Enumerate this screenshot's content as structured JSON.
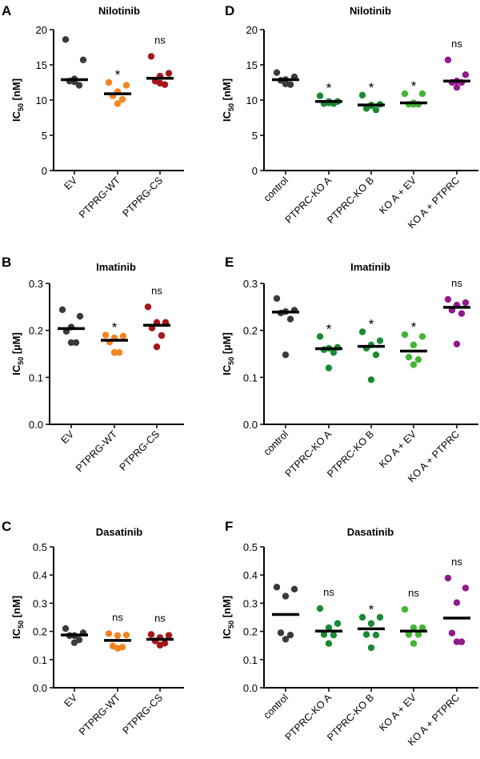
{
  "colors": {
    "EV": "#3a3a3a",
    "control": "#3a3a3a",
    "PTPRG-WT": "#f5841f",
    "PTPRG-CS": "#a4161a",
    "PTPRC-KO A": "#1a8a34",
    "PTPRC-KO B": "#1a8a34",
    "KO A + EV": "#42b533",
    "KO A + PTPRC": "#8e1a8c",
    "median": "#000000",
    "axis": "#000000"
  },
  "chart_data": [
    {
      "id": "A",
      "type": "scatter",
      "panel_letter": "A",
      "title": "Nilotinib",
      "ylabel_main": "IC",
      "ylabel_sub": "50",
      "ylabel_unit": " [nM]",
      "ylim": [
        0,
        20
      ],
      "yticks": [
        0,
        5,
        10,
        15,
        20
      ],
      "ytick_labels": [
        "0",
        "5",
        "10",
        "15",
        "20"
      ],
      "categories": [
        "EV",
        "PTPRG-WT",
        "PTPRG-CS"
      ],
      "series": [
        {
          "name": "EV",
          "values": [
            18.6,
            15.7,
            13.0,
            12.7,
            12.1,
            12.6
          ],
          "median": 12.9,
          "sig": ""
        },
        {
          "name": "PTPRG-WT",
          "values": [
            12.5,
            12.1,
            11.2,
            10.6,
            10.1,
            9.5
          ],
          "median": 10.9,
          "sig": "*"
        },
        {
          "name": "PTPRG-CS",
          "values": [
            16.2,
            13.8,
            13.4,
            12.7,
            12.2,
            12.4
          ],
          "median": 13.1,
          "sig": "ns"
        }
      ]
    },
    {
      "id": "D",
      "type": "scatter",
      "panel_letter": "D",
      "title": "Nilotinib",
      "ylabel_main": "IC",
      "ylabel_sub": "50",
      "ylabel_unit": " [nM]",
      "ylim": [
        0,
        20
      ],
      "yticks": [
        0,
        5,
        10,
        15,
        20
      ],
      "ytick_labels": [
        "0",
        "5",
        "10",
        "15",
        "20"
      ],
      "categories": [
        "control",
        "PTPRC-KO A",
        "PTPRC-KO B",
        "KO A + EV",
        "KO A + PTPRC"
      ],
      "series": [
        {
          "name": "control",
          "values": [
            13.9,
            13.3,
            12.9,
            12.8,
            12.2,
            12.3
          ],
          "median": 12.9,
          "sig": ""
        },
        {
          "name": "PTPRC-KO A",
          "values": [
            10.6,
            9.8,
            9.6,
            9.5,
            9.5,
            9.8
          ],
          "median": 9.8,
          "sig": "*"
        },
        {
          "name": "PTPRC-KO B",
          "values": [
            10.7,
            9.4,
            9.2,
            8.8,
            8.6,
            9.3
          ],
          "median": 9.3,
          "sig": "*"
        },
        {
          "name": "KO A + EV",
          "values": [
            10.9,
            10.9,
            9.6,
            9.4,
            9.4,
            9.4
          ],
          "median": 9.6,
          "sig": "*"
        },
        {
          "name": "KO A + PTPRC",
          "values": [
            15.7,
            13.6,
            12.7,
            12.5,
            12.5,
            11.8
          ],
          "median": 12.7,
          "sig": "ns"
        }
      ]
    },
    {
      "id": "B",
      "type": "scatter",
      "panel_letter": "B",
      "title": "Imatinib",
      "ylabel_main": "IC",
      "ylabel_sub": "50",
      "ylabel_unit": " [µM]",
      "ylim": [
        0,
        0.3
      ],
      "yticks": [
        0,
        0.1,
        0.2,
        0.3
      ],
      "ytick_labels": [
        "0.0",
        "0.1",
        "0.2",
        "0.3"
      ],
      "categories": [
        "EV",
        "PTPRG-WT",
        "PTPRG-CS"
      ],
      "series": [
        {
          "name": "EV",
          "values": [
            0.244,
            0.23,
            0.207,
            0.198,
            0.174,
            0.174
          ],
          "median": 0.204,
          "sig": ""
        },
        {
          "name": "PTPRG-WT",
          "values": [
            0.19,
            0.188,
            0.184,
            0.175,
            0.153,
            0.153
          ],
          "median": 0.179,
          "sig": "*"
        },
        {
          "name": "PTPRG-CS",
          "values": [
            0.25,
            0.217,
            0.217,
            0.205,
            0.189,
            0.165
          ],
          "median": 0.211,
          "sig": "ns"
        }
      ]
    },
    {
      "id": "E",
      "type": "scatter",
      "panel_letter": "E",
      "title": "Imatinib",
      "ylabel_main": "IC",
      "ylabel_sub": "50",
      "ylabel_unit": " [µM]",
      "ylim": [
        0,
        0.3
      ],
      "yticks": [
        0,
        0.1,
        0.2,
        0.3
      ],
      "ytick_labels": [
        "0.0",
        "0.1",
        "0.2",
        "0.3"
      ],
      "categories": [
        "control",
        "PTPRC-KO A",
        "PTPRC-KO B",
        "KO A + EV",
        "KO A + PTPRC"
      ],
      "series": [
        {
          "name": "control",
          "values": [
            0.268,
            0.243,
            0.24,
            0.237,
            0.224,
            0.148
          ],
          "median": 0.239,
          "sig": ""
        },
        {
          "name": "PTPRC-KO A",
          "values": [
            0.187,
            0.164,
            0.162,
            0.159,
            0.153,
            0.12
          ],
          "median": 0.161,
          "sig": "*"
        },
        {
          "name": "PTPRC-KO B",
          "values": [
            0.197,
            0.178,
            0.169,
            0.162,
            0.148,
            0.095
          ],
          "median": 0.166,
          "sig": "*"
        },
        {
          "name": "KO A + EV",
          "values": [
            0.191,
            0.187,
            0.169,
            0.143,
            0.138,
            0.127
          ],
          "median": 0.156,
          "sig": "*"
        },
        {
          "name": "KO A + PTPRC",
          "values": [
            0.266,
            0.259,
            0.254,
            0.243,
            0.236,
            0.171
          ],
          "median": 0.249,
          "sig": "ns"
        }
      ]
    },
    {
      "id": "C",
      "type": "scatter",
      "panel_letter": "C",
      "title": "Dasatinib",
      "ylabel_main": "IC",
      "ylabel_sub": "50",
      "ylabel_unit": " [nM]",
      "ylim": [
        0,
        0.5
      ],
      "yticks": [
        0,
        0.1,
        0.2,
        0.3,
        0.4,
        0.5
      ],
      "ytick_labels": [
        "0.0",
        "0.1",
        "0.2",
        "0.3",
        "0.4",
        "0.5"
      ],
      "categories": [
        "EV",
        "PTPRG-WT",
        "PTPRG-CS"
      ],
      "series": [
        {
          "name": "EV",
          "values": [
            0.21,
            0.195,
            0.185,
            0.185,
            0.17,
            0.16
          ],
          "median": 0.187,
          "sig": ""
        },
        {
          "name": "PTPRG-WT",
          "values": [
            0.192,
            0.187,
            0.185,
            0.148,
            0.144,
            0.14
          ],
          "median": 0.168,
          "sig": "ns"
        },
        {
          "name": "PTPRG-CS",
          "values": [
            0.189,
            0.186,
            0.178,
            0.166,
            0.158,
            0.151
          ],
          "median": 0.172,
          "sig": "ns"
        }
      ]
    },
    {
      "id": "F",
      "type": "scatter",
      "panel_letter": "F",
      "title": "Dasatinib",
      "ylabel_main": "IC",
      "ylabel_sub": "50",
      "ylabel_unit": " [nM]",
      "ylim": [
        0,
        0.5
      ],
      "yticks": [
        0,
        0.1,
        0.2,
        0.3,
        0.4,
        0.5
      ],
      "ytick_labels": [
        "0.0",
        "0.1",
        "0.2",
        "0.3",
        "0.4",
        "0.5"
      ],
      "categories": [
        "control",
        "PTPRC-KO A",
        "PTPRC-KO B",
        "KO A + EV",
        "KO A + PTPRC"
      ],
      "series": [
        {
          "name": "control",
          "values": [
            0.357,
            0.35,
            0.325,
            0.195,
            0.187,
            0.172
          ],
          "median": 0.26,
          "sig": ""
        },
        {
          "name": "PTPRC-KO A",
          "values": [
            0.281,
            0.228,
            0.213,
            0.189,
            0.187,
            0.157
          ],
          "median": 0.201,
          "sig": "ns"
        },
        {
          "name": "PTPRC-KO B",
          "values": [
            0.25,
            0.25,
            0.228,
            0.189,
            0.187,
            0.142
          ],
          "median": 0.209,
          "sig": "*"
        },
        {
          "name": "KO A + EV",
          "values": [
            0.278,
            0.213,
            0.213,
            0.189,
            0.189,
            0.157
          ],
          "median": 0.201,
          "sig": "ns"
        },
        {
          "name": "KO A + PTPRC",
          "values": [
            0.389,
            0.354,
            0.302,
            0.194,
            0.163,
            0.163
          ],
          "median": 0.247,
          "sig": "ns"
        }
      ]
    }
  ]
}
